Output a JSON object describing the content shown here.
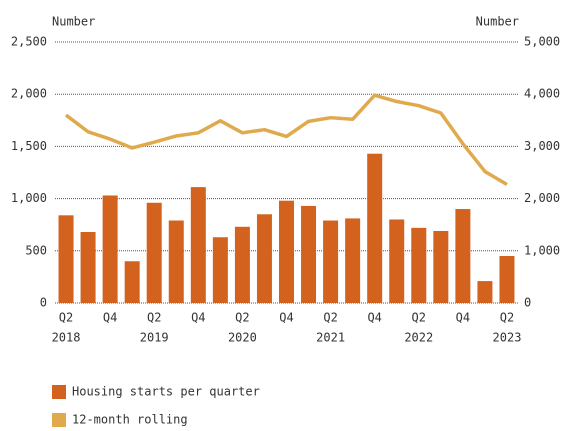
{
  "chart_data": {
    "type": "bar_line",
    "y_label": "Number",
    "y2_label": "Number",
    "categories": [
      "Q2",
      null,
      "Q4",
      null,
      "Q2",
      null,
      "Q4",
      null,
      "Q2",
      null,
      "Q4",
      null,
      "Q2",
      null,
      "Q4",
      null,
      "Q2",
      null,
      "Q4",
      null,
      "Q2"
    ],
    "years": [
      "2018",
      null,
      null,
      null,
      "2019",
      null,
      null,
      null,
      "2020",
      null,
      null,
      null,
      "2021",
      null,
      null,
      null,
      "2022",
      null,
      null,
      null,
      "2023"
    ],
    "series": [
      {
        "name": "Housing starts per quarter",
        "color": "#d4621f",
        "type": "bar",
        "values": [
          840,
          680,
          1030,
          400,
          960,
          790,
          1110,
          630,
          730,
          850,
          980,
          930,
          790,
          810,
          1430,
          800,
          720,
          690,
          900,
          210,
          450
        ]
      },
      {
        "name": "12-month rolling",
        "color": "#e0aa4c",
        "type": "line",
        "axis": "y2",
        "values": [
          3600,
          3280,
          3140,
          2970,
          3080,
          3200,
          3260,
          3490,
          3260,
          3320,
          3190,
          3480,
          3550,
          3520,
          3980,
          3860,
          3780,
          3640,
          3050,
          2520,
          2270
        ]
      }
    ],
    "ylim": [
      0,
      2500
    ],
    "yticks": [
      0,
      500,
      {
        "value": 1000,
        "label": "1,000"
      },
      {
        "value": 1500,
        "label": "1,500"
      },
      {
        "value": 2000,
        "label": "2,000"
      },
      {
        "value": 2500,
        "label": "2,500"
      }
    ],
    "y2lim": [
      0,
      5000
    ],
    "y2ticks": [
      0,
      {
        "value": 1000,
        "label": "1,000"
      },
      {
        "value": 2000,
        "label": "2,000"
      },
      {
        "value": 3000,
        "label": "3,000"
      },
      {
        "value": 4000,
        "label": "4,000"
      },
      {
        "value": 5000,
        "label": "5,000"
      }
    ],
    "grid": true
  }
}
